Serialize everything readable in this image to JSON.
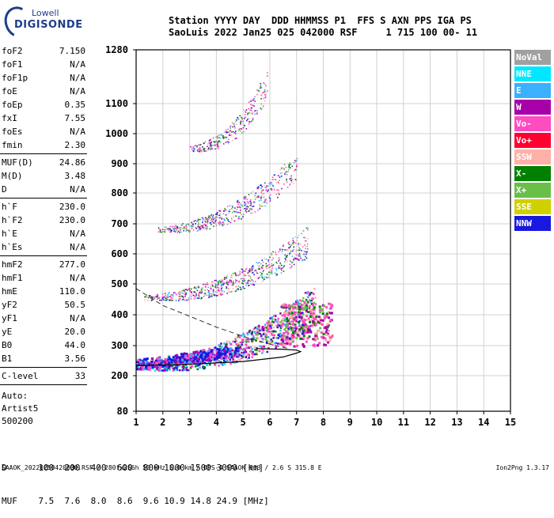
{
  "logo": {
    "line1": "Lowell",
    "line2": "DIGISONDE"
  },
  "header": {
    "line1": "Station YYYY DAY  DDD HHMMSS P1  FFS S AXN PPS IGA PS",
    "line2": "SaoLuis 2022 Jan25 025 042000 RSF     1 715 100 00- 11"
  },
  "params": [
    [
      {
        "k": "foF2",
        "v": "7.150"
      },
      {
        "k": "foF1",
        "v": "N/A"
      },
      {
        "k": "foF1p",
        "v": "N/A"
      },
      {
        "k": "foE",
        "v": "N/A"
      },
      {
        "k": "foEp",
        "v": "0.35"
      },
      {
        "k": "fxI",
        "v": "7.55"
      },
      {
        "k": "foEs",
        "v": "N/A"
      },
      {
        "k": "fmin",
        "v": "2.30"
      }
    ],
    [
      {
        "k": "MUF(D)",
        "v": "24.86"
      },
      {
        "k": "M(D)",
        "v": "3.48"
      },
      {
        "k": "D",
        "v": "N/A"
      }
    ],
    [
      {
        "k": "h`F",
        "v": "230.0"
      },
      {
        "k": "h`F2",
        "v": "230.0"
      },
      {
        "k": "h`E",
        "v": "N/A"
      },
      {
        "k": "h`Es",
        "v": "N/A"
      }
    ],
    [
      {
        "k": "hmF2",
        "v": "277.0"
      },
      {
        "k": "hmF1",
        "v": "N/A"
      },
      {
        "k": "hmE",
        "v": "110.0"
      },
      {
        "k": "yF2",
        "v": "50.5"
      },
      {
        "k": "yF1",
        "v": "N/A"
      },
      {
        "k": "yE",
        "v": "20.0"
      },
      {
        "k": "B0",
        "v": "44.0"
      },
      {
        "k": "B1",
        "v": "3.56"
      }
    ],
    [
      {
        "k": "C-level",
        "v": "33"
      }
    ]
  ],
  "auto": {
    "line1": "Auto:",
    "line2": "Artist5",
    "line3": "500200"
  },
  "legend": [
    {
      "label": "NoVal",
      "color": "#a0a0a0"
    },
    {
      "label": "NNE",
      "color": "#00e8ff"
    },
    {
      "label": "E",
      "color": "#3ab0ff"
    },
    {
      "label": "W",
      "color": "#a800a8"
    },
    {
      "label": "Vo-",
      "color": "#ff4cc0"
    },
    {
      "label": "Vo+",
      "color": "#ff0030"
    },
    {
      "label": "SSW",
      "color": "#ffb0a8"
    },
    {
      "label": "X-",
      "color": "#008000"
    },
    {
      "label": "X+",
      "color": "#6abf4a"
    },
    {
      "label": "SSE",
      "color": "#d0d000"
    },
    {
      "label": "NNW",
      "color": "#1818e0"
    }
  ],
  "chart_data": {
    "type": "scatter",
    "title": "",
    "xlabel": "",
    "ylabel": "",
    "xlim": [
      1,
      15
    ],
    "ylim": [
      80,
      1280
    ],
    "x_ticks": [
      "1",
      "2",
      "3",
      "4",
      "5",
      "6",
      "7",
      "8",
      "9",
      "10",
      "11",
      "12",
      "13",
      "14",
      "15"
    ],
    "y_ticks": [
      "80",
      "200",
      "300",
      "400",
      "500",
      "600",
      "700",
      "800",
      "900",
      "1000",
      "1100",
      "1280"
    ],
    "y_scale": "ionogram-virtual-height",
    "grid": true,
    "traces": [
      {
        "name": "F2 first hop",
        "f_start": 1.0,
        "f_end": 7.7,
        "h_start": 230,
        "h_end": 420
      },
      {
        "name": "F2 second hop",
        "f_start": 1.3,
        "f_end": 7.4,
        "h_start": 455,
        "h_end": 630
      },
      {
        "name": "F2 third hop",
        "f_start": 1.8,
        "f_end": 7.0,
        "h_start": 680,
        "h_end": 880
      },
      {
        "name": "F2 fourth hop",
        "f_start": 3.0,
        "f_end": 5.9,
        "h_start": 950,
        "h_end": 1150
      }
    ],
    "profile": {
      "foF2": 7.15,
      "hmF2": 277,
      "x": [
        1.0,
        3.0,
        5.0,
        6.5,
        7.0,
        7.15,
        7.0,
        6.5,
        5.5
      ],
      "y": [
        233,
        238,
        247,
        262,
        275,
        280,
        285,
        288,
        290
      ]
    },
    "profile_extrapolation": {
      "x": [
        1.0,
        2.0,
        3.0,
        4.0,
        5.0,
        6.0,
        6.7
      ],
      "y": [
        485,
        430,
        395,
        360,
        330,
        305,
        290
      ]
    }
  },
  "bottom": {
    "line1": "D      100  200  400  600  800 1000 1500 3000 [km]",
    "line2": "MUF    7.5  7.6  8.0  8.6  9.6 10.9 14.8 24.9 [MHz]"
  },
  "footer": {
    "left": "SAAOK_20220250420000.RSF / 280fx256h 50 kHz 5.0 km / DPS-4 SAAOK 903 / 2.6 S 315.8 E",
    "right": "Ion2Png 1.3.17"
  }
}
